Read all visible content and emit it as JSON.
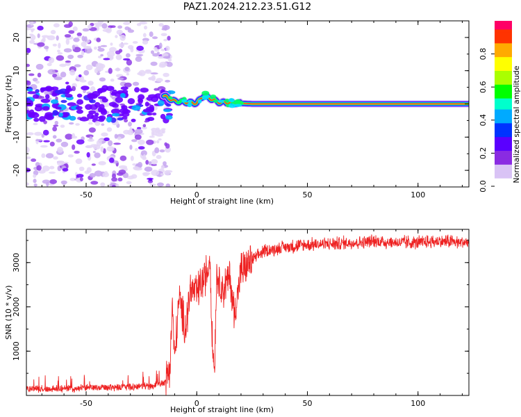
{
  "title": "PAZ1.2024.212.23.51.G12",
  "colors": {
    "snr_line": "#ee2222",
    "axes": "#000000",
    "background": "#ffffff"
  },
  "chart_data": [
    {
      "type": "heatmap",
      "xlabel": "Height of straight line (km)",
      "ylabel": "Frequency (Hz)",
      "xlim": [
        -77,
        123
      ],
      "ylim": [
        -25,
        25
      ],
      "xticks": [
        -50,
        0,
        50,
        100
      ],
      "yticks": [
        -20,
        -10,
        0,
        10,
        20
      ],
      "colorbar": {
        "label": "Normalized spectral amplitude",
        "range": [
          0,
          1
        ],
        "ticks": [
          0.0,
          0.2,
          0.4,
          0.6,
          0.8
        ],
        "colormap": [
          "#ffffff",
          "#d9c3f5",
          "#8a2be2",
          "#5a00ff",
          "#0033ff",
          "#00aaff",
          "#00ffcc",
          "#00ff00",
          "#aaff00",
          "#ffff00",
          "#ffaa00",
          "#ff3300",
          "#ff0066"
        ]
      },
      "signal_trace": [
        {
          "x": -15,
          "freq": 2.5,
          "amp": 0.3
        },
        {
          "x": -10,
          "freq": 0.8,
          "amp": 0.45
        },
        {
          "x": 0,
          "freq": 0.2,
          "amp": 0.5
        },
        {
          "x": 3,
          "freq": 2.5,
          "amp": 0.4
        },
        {
          "x": 10,
          "freq": 0.5,
          "amp": 0.6
        },
        {
          "x": 25,
          "freq": 0.0,
          "amp": 0.8
        },
        {
          "x": 50,
          "freq": 0.0,
          "amp": 0.9
        },
        {
          "x": 100,
          "freq": 0.0,
          "amp": 1.0
        }
      ],
      "noise_region": [
        -77,
        -15
      ]
    },
    {
      "type": "line",
      "xlabel": "Height of straight line (km)",
      "ylabel": "SNR (10 * v/v)",
      "xlim": [
        -77,
        123
      ],
      "ylim": [
        0,
        3750
      ],
      "xticks": [
        -50,
        0,
        50,
        100
      ],
      "yticks": [
        1000,
        2000,
        3000
      ],
      "series": [
        {
          "x": [
            -77,
            -60,
            -45,
            -30,
            -20,
            -14,
            -12,
            -11,
            -10,
            -8,
            -5,
            -3,
            0,
            3,
            5,
            6,
            7,
            8,
            9,
            10,
            12,
            15,
            17,
            20,
            25,
            30,
            40,
            50,
            60,
            70,
            80,
            90,
            100,
            110,
            123
          ],
          "y": [
            150,
            150,
            180,
            200,
            220,
            300,
            700,
            2100,
            800,
            2200,
            1500,
            2400,
            2300,
            2600,
            2800,
            3200,
            1200,
            600,
            2800,
            2600,
            2400,
            2700,
            1800,
            2800,
            3050,
            3250,
            3350,
            3400,
            3420,
            3450,
            3480,
            3450,
            3450,
            3480,
            3450
          ]
        }
      ]
    }
  ]
}
